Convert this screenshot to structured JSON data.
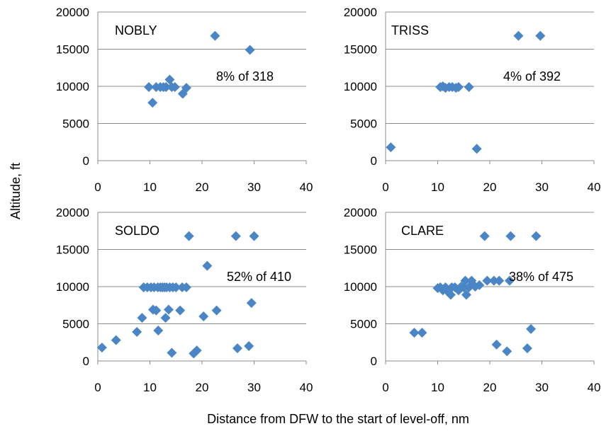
{
  "figure": {
    "ylabel": "Altitude, ft",
    "xlabel": "Distance from DFW to the start of level-off, nm",
    "marker_color": "#4a86c5"
  },
  "chart_data": [
    {
      "type": "scatter",
      "name": "NOBLY",
      "annotation": "8% of 318",
      "xlim": [
        0,
        40
      ],
      "ylim": [
        0,
        20000
      ],
      "xticks": [
        "0",
        "10",
        "20",
        "30",
        "40"
      ],
      "yticks": [
        "0",
        "5000",
        "10000",
        "15000",
        "20000"
      ],
      "grid": "horizontal",
      "points": [
        [
          9.8,
          9900
        ],
        [
          10.5,
          7800
        ],
        [
          11.2,
          9900
        ],
        [
          12.0,
          9900
        ],
        [
          12.6,
          9900
        ],
        [
          13.1,
          9900
        ],
        [
          13.8,
          10900
        ],
        [
          14.2,
          9900
        ],
        [
          14.8,
          9900
        ],
        [
          16.3,
          9000
        ],
        [
          17.0,
          9800
        ],
        [
          22.5,
          16800
        ],
        [
          29.2,
          14900
        ]
      ]
    },
    {
      "type": "scatter",
      "name": "TRISS",
      "annotation": "4% of 392",
      "xlim": [
        0,
        40
      ],
      "ylim": [
        0,
        20000
      ],
      "xticks": [
        "0",
        "10",
        "20",
        "30",
        "40"
      ],
      "yticks": [
        "0",
        "5000",
        "10000",
        "15000",
        "20000"
      ],
      "grid": "horizontal",
      "points": [
        [
          1.0,
          1800
        ],
        [
          10.5,
          9900
        ],
        [
          11.0,
          10000
        ],
        [
          11.5,
          9800
        ],
        [
          12.2,
          9900
        ],
        [
          12.8,
          9900
        ],
        [
          13.5,
          9800
        ],
        [
          14.0,
          9900
        ],
        [
          16.0,
          9900
        ],
        [
          17.5,
          1600
        ],
        [
          25.5,
          16800
        ],
        [
          29.7,
          16800
        ]
      ]
    },
    {
      "type": "scatter",
      "name": "SOLDO",
      "annotation": "52% of 410",
      "xlim": [
        0,
        40
      ],
      "ylim": [
        0,
        20000
      ],
      "xticks": [
        "0",
        "10",
        "20",
        "30",
        "40"
      ],
      "yticks": [
        "0",
        "5000",
        "10000",
        "15000",
        "20000"
      ],
      "grid": "horizontal",
      "points": [
        [
          0.8,
          1800
        ],
        [
          3.5,
          2800
        ],
        [
          7.5,
          3900
        ],
        [
          8.5,
          5800
        ],
        [
          8.8,
          9900
        ],
        [
          9.5,
          9900
        ],
        [
          10.2,
          9900
        ],
        [
          10.6,
          6900
        ],
        [
          10.8,
          9900
        ],
        [
          11.2,
          6800
        ],
        [
          11.5,
          9900
        ],
        [
          11.6,
          4100
        ],
        [
          12.0,
          9900
        ],
        [
          12.4,
          9900
        ],
        [
          12.8,
          9900
        ],
        [
          13.0,
          5800
        ],
        [
          13.2,
          9900
        ],
        [
          13.6,
          6900
        ],
        [
          13.8,
          9900
        ],
        [
          14.2,
          1100
        ],
        [
          14.4,
          9900
        ],
        [
          15.0,
          9900
        ],
        [
          15.8,
          6800
        ],
        [
          16.2,
          9900
        ],
        [
          17.0,
          9900
        ],
        [
          17.5,
          16800
        ],
        [
          18.4,
          1000
        ],
        [
          19.0,
          1400
        ],
        [
          20.3,
          6000
        ],
        [
          21.0,
          12800
        ],
        [
          22.8,
          6800
        ],
        [
          26.5,
          16800
        ],
        [
          26.8,
          1700
        ],
        [
          29.0,
          2000
        ],
        [
          29.5,
          7800
        ],
        [
          30.0,
          16800
        ]
      ]
    },
    {
      "type": "scatter",
      "name": "CLARE",
      "annotation": "38% of 475",
      "xlim": [
        0,
        40
      ],
      "ylim": [
        0,
        20000
      ],
      "xticks": [
        "0",
        "10",
        "20",
        "30",
        "40"
      ],
      "yticks": [
        "0",
        "5000",
        "10000",
        "15000",
        "20000"
      ],
      "grid": "horizontal",
      "points": [
        [
          5.5,
          3800
        ],
        [
          7.0,
          3800
        ],
        [
          10.0,
          9800
        ],
        [
          10.5,
          9900
        ],
        [
          11.0,
          9500
        ],
        [
          11.5,
          9900
        ],
        [
          12.0,
          9300
        ],
        [
          12.5,
          8900
        ],
        [
          12.7,
          9900
        ],
        [
          13.3,
          9900
        ],
        [
          14.0,
          9500
        ],
        [
          14.5,
          10000
        ],
        [
          15.0,
          9900
        ],
        [
          15.3,
          10800
        ],
        [
          15.5,
          8900
        ],
        [
          16.0,
          9900
        ],
        [
          16.5,
          10800
        ],
        [
          17.2,
          10000
        ],
        [
          18.0,
          10200
        ],
        [
          19.0,
          16800
        ],
        [
          19.5,
          10800
        ],
        [
          20.8,
          10800
        ],
        [
          21.3,
          2200
        ],
        [
          21.8,
          10800
        ],
        [
          23.3,
          1300
        ],
        [
          23.8,
          10800
        ],
        [
          24.0,
          16800
        ],
        [
          27.2,
          1700
        ],
        [
          27.9,
          4300
        ],
        [
          28.9,
          16800
        ]
      ]
    }
  ]
}
